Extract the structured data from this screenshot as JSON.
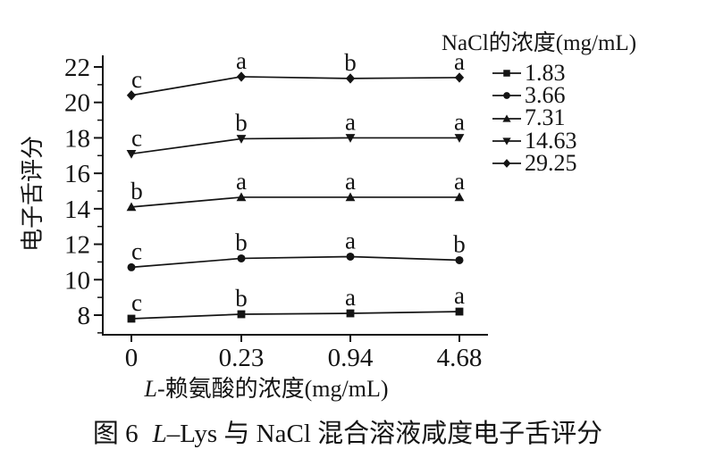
{
  "figure": {
    "caption": {
      "label": "图 6",
      "title_italic": "L",
      "title_rest": "–Lys 与 NaCl 混合溶液咸度电子舌评分"
    }
  },
  "chart_data": {
    "type": "line",
    "title": "",
    "xlabel": "L-赖氨酸的浓度(mg/mL)",
    "xlabel_parts": {
      "italic": "L",
      "rest": "-赖氨酸的浓度(mg/mL)"
    },
    "ylabel": "电子舌评分",
    "legend_title": "NaCl的浓度(mg/mL)",
    "legend_position": "top-right-outside",
    "grid": false,
    "x_scale": "categorical-equal-spacing",
    "categories": [
      "0",
      "0.23",
      "0.94",
      "4.68"
    ],
    "yticks": [
      8,
      10,
      12,
      14,
      16,
      18,
      20,
      22
    ],
    "ylim": [
      7,
      22.7
    ],
    "series": [
      {
        "name": "1.83",
        "marker": "square",
        "values": [
          7.8,
          8.05,
          8.1,
          8.2
        ],
        "point_labels": [
          "c",
          "b",
          "a",
          "a"
        ]
      },
      {
        "name": "3.66",
        "marker": "circle",
        "values": [
          10.7,
          11.2,
          11.3,
          11.1
        ],
        "point_labels": [
          "c",
          "b",
          "a",
          "b"
        ]
      },
      {
        "name": "7.31",
        "marker": "triangle-up",
        "values": [
          14.1,
          14.65,
          14.65,
          14.65
        ],
        "point_labels": [
          "b",
          "a",
          "a",
          "a"
        ]
      },
      {
        "name": "14.63",
        "marker": "triangle-down",
        "values": [
          17.1,
          17.95,
          18.0,
          18.0
        ],
        "point_labels": [
          "c",
          "b",
          "a",
          "a"
        ]
      },
      {
        "name": "29.25",
        "marker": "diamond",
        "values": [
          20.4,
          21.45,
          21.35,
          21.4
        ],
        "point_labels": [
          "c",
          "a",
          "b",
          "a"
        ]
      }
    ],
    "colors": {
      "line": "#141414",
      "text": "#141414",
      "background": "#ffffff"
    }
  }
}
